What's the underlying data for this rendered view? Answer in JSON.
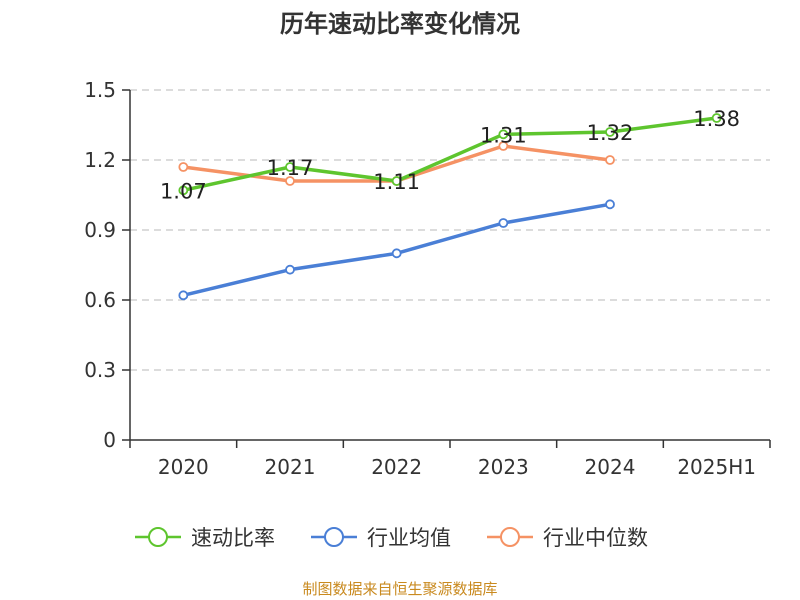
{
  "chart_data": {
    "type": "line",
    "title": "历年速动比率变化情况",
    "categories": [
      "2020",
      "2021",
      "2022",
      "2023",
      "2024",
      "2025H1"
    ],
    "ylim": [
      0,
      1.5
    ],
    "yticks": [
      "0",
      "0.3",
      "0.6",
      "0.9",
      "1.2",
      "1.5"
    ],
    "grid": true,
    "legend_position": "bottom",
    "series": [
      {
        "name": "速动比率",
        "color": "#5ec52e",
        "values": [
          1.07,
          1.17,
          1.11,
          1.31,
          1.32,
          1.38
        ],
        "labels": [
          "1.07",
          "1.17",
          "1.11",
          "1.31",
          "1.32",
          "1.38"
        ]
      },
      {
        "name": "行业均值",
        "color": "#4a7fd6",
        "values": [
          0.62,
          0.73,
          0.8,
          0.93,
          1.01,
          null
        ]
      },
      {
        "name": "行业中位数",
        "color": "#f59264",
        "values": [
          1.17,
          1.11,
          1.11,
          1.26,
          1.2,
          null
        ]
      }
    ]
  },
  "footer": {
    "text": "制图数据来自恒生聚源数据库",
    "color": "#c98a1f"
  }
}
